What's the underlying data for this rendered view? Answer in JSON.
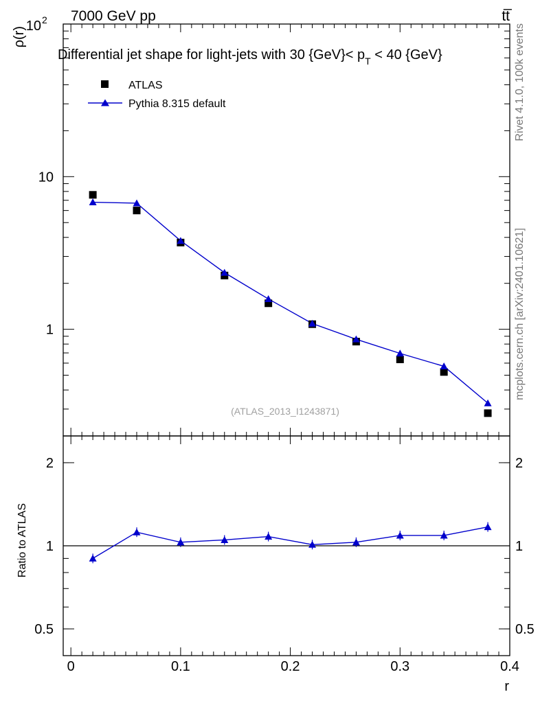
{
  "header": {
    "left": "7000 GeV pp",
    "right": "tt̅"
  },
  "side_labels": {
    "rivet": "Rivet 4.1.0,  100k events",
    "mcplots": "mcplots.cern.ch [arXiv:2401.10621]"
  },
  "chart_data": [
    {
      "type": "scatter",
      "title_parts": {
        "before": "Differential jet shape for light-jets with 30 {GeV}< p",
        "subscript": "T",
        "after": " < 40 {GeV}"
      },
      "ylabel": "ρ(r)",
      "yscale": "log",
      "ylim": [
        0.2,
        100
      ],
      "xlim": [
        -0.007,
        0.4
      ],
      "yticks": [
        {
          "value": 1,
          "label": "1"
        },
        {
          "value": 10,
          "label": "10"
        },
        {
          "value": 100,
          "label": "10",
          "sup": "2"
        }
      ],
      "watermark": "(ATLAS_2013_I1243871)",
      "legend": [
        {
          "name": "ATLAS",
          "marker": "square",
          "color": "#000000"
        },
        {
          "name": "Pythia 8.315 default",
          "marker": "triangle",
          "color": "#0000cc"
        }
      ],
      "x": [
        0.02,
        0.06,
        0.1,
        0.14,
        0.18,
        0.22,
        0.26,
        0.3,
        0.34,
        0.38
      ],
      "series": [
        {
          "name": "ATLAS",
          "values": [
            7.6,
            6.0,
            3.7,
            2.25,
            1.48,
            1.08,
            0.83,
            0.635,
            0.525,
            0.282
          ]
        },
        {
          "name": "Pythia 8.315 default",
          "values": [
            6.8,
            6.7,
            3.8,
            2.35,
            1.58,
            1.09,
            0.86,
            0.695,
            0.572,
            0.328
          ]
        }
      ]
    },
    {
      "type": "line",
      "ylabel": "Ratio to ATLAS",
      "xlabel": "r",
      "yscale": "log",
      "ylim": [
        0.4,
        2.5
      ],
      "xlim": [
        -0.007,
        0.4
      ],
      "yticks": [
        {
          "value": 0.5,
          "label": "0.5"
        },
        {
          "value": 1,
          "label": "1"
        },
        {
          "value": 2,
          "label": "2"
        }
      ],
      "xticks": [
        {
          "value": 0,
          "label": "0"
        },
        {
          "value": 0.1,
          "label": "0.1"
        },
        {
          "value": 0.2,
          "label": "0.2"
        },
        {
          "value": 0.3,
          "label": "0.3"
        },
        {
          "value": 0.4,
          "label": "0.4"
        }
      ],
      "reference": 1,
      "x": [
        0.02,
        0.06,
        0.1,
        0.14,
        0.18,
        0.22,
        0.26,
        0.3,
        0.34,
        0.38
      ],
      "series": [
        {
          "name": "Pythia 8.315 default",
          "values": [
            0.9,
            1.12,
            1.03,
            1.05,
            1.08,
            1.01,
            1.03,
            1.09,
            1.09,
            1.17
          ]
        }
      ]
    }
  ]
}
